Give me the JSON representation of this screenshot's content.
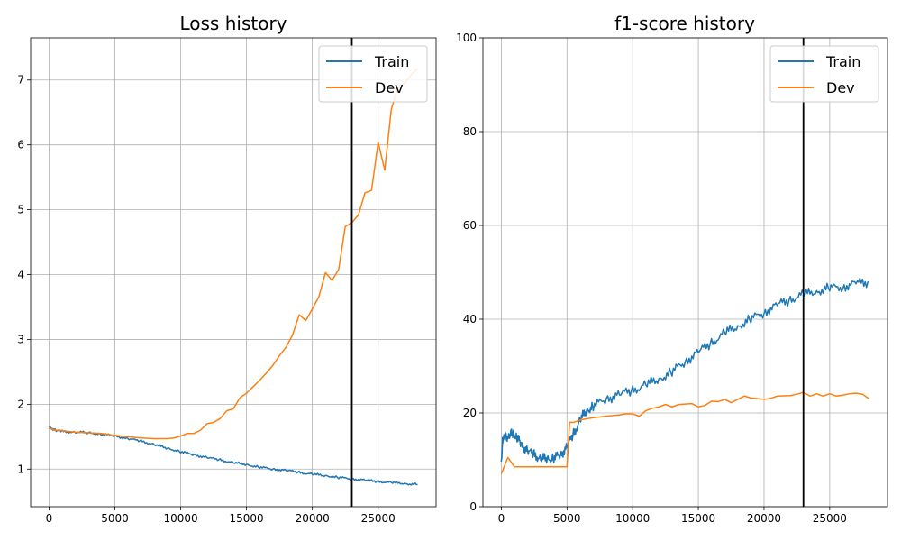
{
  "colors": {
    "train": "#1f77b4",
    "dev": "#ff7f0e",
    "marker": "#000000",
    "grid": "#b0b0b0"
  },
  "chart_data": [
    {
      "type": "line",
      "title": "Loss history",
      "xlabel": "",
      "ylabel": "",
      "xlim": [
        -1400,
        29400
      ],
      "ylim": [
        0.42,
        7.65
      ],
      "xticks": [
        0,
        5000,
        10000,
        15000,
        20000,
        25000
      ],
      "xtick_labels": [
        "0",
        "5000",
        "10000",
        "15000",
        "20000",
        "25000"
      ],
      "yticks": [
        1,
        2,
        3,
        4,
        5,
        6,
        7
      ],
      "ytick_labels": [
        "1",
        "2",
        "3",
        "4",
        "5",
        "6",
        "7"
      ],
      "grid": true,
      "legend": "upper right",
      "vline_x": 23000,
      "series": [
        {
          "name": "Train",
          "color": "#1f77b4",
          "x": [
            0,
            500,
            1000,
            2000,
            3000,
            4000,
            5000,
            6000,
            7000,
            8000,
            9000,
            10000,
            11000,
            12000,
            13000,
            14000,
            15000,
            16000,
            17000,
            18000,
            19000,
            20000,
            21000,
            22000,
            23000,
            24000,
            25000,
            26000,
            27000,
            28000
          ],
          "y": [
            1.65,
            1.6,
            1.58,
            1.57,
            1.56,
            1.54,
            1.51,
            1.47,
            1.43,
            1.38,
            1.32,
            1.27,
            1.22,
            1.18,
            1.14,
            1.1,
            1.07,
            1.03,
            1.0,
            0.98,
            0.95,
            0.92,
            0.9,
            0.87,
            0.85,
            0.83,
            0.81,
            0.79,
            0.78,
            0.76
          ]
        },
        {
          "name": "Dev",
          "color": "#ff7f0e",
          "x": [
            0,
            500,
            1000,
            2000,
            3000,
            4000,
            5000,
            6000,
            7000,
            8000,
            9000,
            9500,
            10000,
            10500,
            11000,
            11500,
            12000,
            12500,
            13000,
            13500,
            14000,
            14500,
            15000,
            15500,
            16000,
            16500,
            17000,
            17500,
            18000,
            18500,
            19000,
            19500,
            20000,
            20500,
            21000,
            21500,
            22000,
            22500,
            23000,
            23500,
            24000,
            24500,
            25000,
            25500,
            26000,
            26500,
            27000,
            27500,
            28000
          ],
          "y": [
            1.63,
            1.6,
            1.59,
            1.57,
            1.56,
            1.55,
            1.52,
            1.5,
            1.48,
            1.47,
            1.47,
            1.48,
            1.51,
            1.55,
            1.55,
            1.6,
            1.7,
            1.72,
            1.78,
            1.9,
            1.93,
            2.1,
            2.17,
            2.27,
            2.37,
            2.48,
            2.6,
            2.75,
            2.88,
            3.07,
            3.38,
            3.29,
            3.47,
            3.66,
            4.03,
            3.91,
            4.08,
            4.74,
            4.8,
            4.92,
            5.26,
            5.3,
            6.04,
            5.61,
            6.55,
            6.88,
            6.95,
            7.08,
            7.18
          ]
        }
      ]
    },
    {
      "type": "line",
      "title": "f1-score history",
      "xlabel": "",
      "ylabel": "",
      "xlim": [
        -1400,
        29400
      ],
      "ylim": [
        0,
        100
      ],
      "xticks": [
        0,
        5000,
        10000,
        15000,
        20000,
        25000
      ],
      "xtick_labels": [
        "0",
        "5000",
        "10000",
        "15000",
        "20000",
        "25000"
      ],
      "yticks": [
        0,
        20,
        40,
        60,
        80,
        100
      ],
      "ytick_labels": [
        "0",
        "20",
        "40",
        "60",
        "80",
        "100"
      ],
      "grid": true,
      "legend": "upper right",
      "vline_x": 23000,
      "series": [
        {
          "name": "Train",
          "color": "#1f77b4",
          "x": [
            0,
            100,
            300,
            600,
            900,
            1200,
            1500,
            2000,
            2500,
            3000,
            3500,
            4000,
            4500,
            5000,
            5500,
            6000,
            6500,
            7000,
            8000,
            9000,
            10000,
            11000,
            12000,
            13000,
            14000,
            15000,
            16000,
            17000,
            18000,
            19000,
            20000,
            21000,
            22000,
            23000,
            24000,
            25000,
            26000,
            27000,
            28000
          ],
          "y": [
            9.0,
            14.5,
            14.8,
            15.2,
            15.6,
            15.0,
            13.2,
            12.0,
            11.0,
            10.3,
            10.2,
            10.5,
            11.0,
            12.8,
            15.5,
            18.5,
            20.5,
            21.5,
            23.0,
            24.0,
            24.8,
            26.0,
            27.2,
            28.8,
            31.0,
            33.0,
            35.0,
            37.0,
            38.5,
            40.0,
            41.5,
            43.0,
            44.2,
            45.2,
            46.0,
            46.6,
            47.0,
            47.6,
            48.0
          ]
        },
        {
          "name": "Dev",
          "color": "#ff7f0e",
          "x": [
            0,
            500,
            1000,
            2000,
            3000,
            4000,
            5000,
            5200,
            5500,
            6000,
            7000,
            8000,
            9000,
            9500,
            10000,
            10500,
            11000,
            11500,
            12000,
            12500,
            13000,
            13500,
            14000,
            14500,
            15000,
            15500,
            16000,
            16500,
            17000,
            17500,
            18000,
            18500,
            19000,
            20000,
            20500,
            21000,
            22000,
            22500,
            23000,
            23500,
            24000,
            24500,
            25000,
            25500,
            26000,
            26500,
            27000,
            27500,
            28000
          ],
          "y": [
            7.0,
            10.5,
            8.5,
            8.5,
            8.5,
            8.5,
            8.5,
            18.0,
            18.0,
            18.5,
            19.0,
            19.3,
            19.6,
            19.8,
            19.8,
            19.3,
            20.5,
            21.0,
            21.3,
            21.8,
            21.3,
            21.8,
            21.9,
            22.0,
            21.3,
            21.6,
            22.5,
            22.4,
            22.9,
            22.2,
            22.9,
            23.6,
            23.2,
            22.9,
            23.1,
            23.6,
            23.7,
            24.0,
            24.4,
            23.6,
            24.1,
            23.6,
            24.1,
            23.6,
            23.8,
            24.1,
            24.2,
            24.0,
            23.0
          ]
        }
      ]
    }
  ]
}
